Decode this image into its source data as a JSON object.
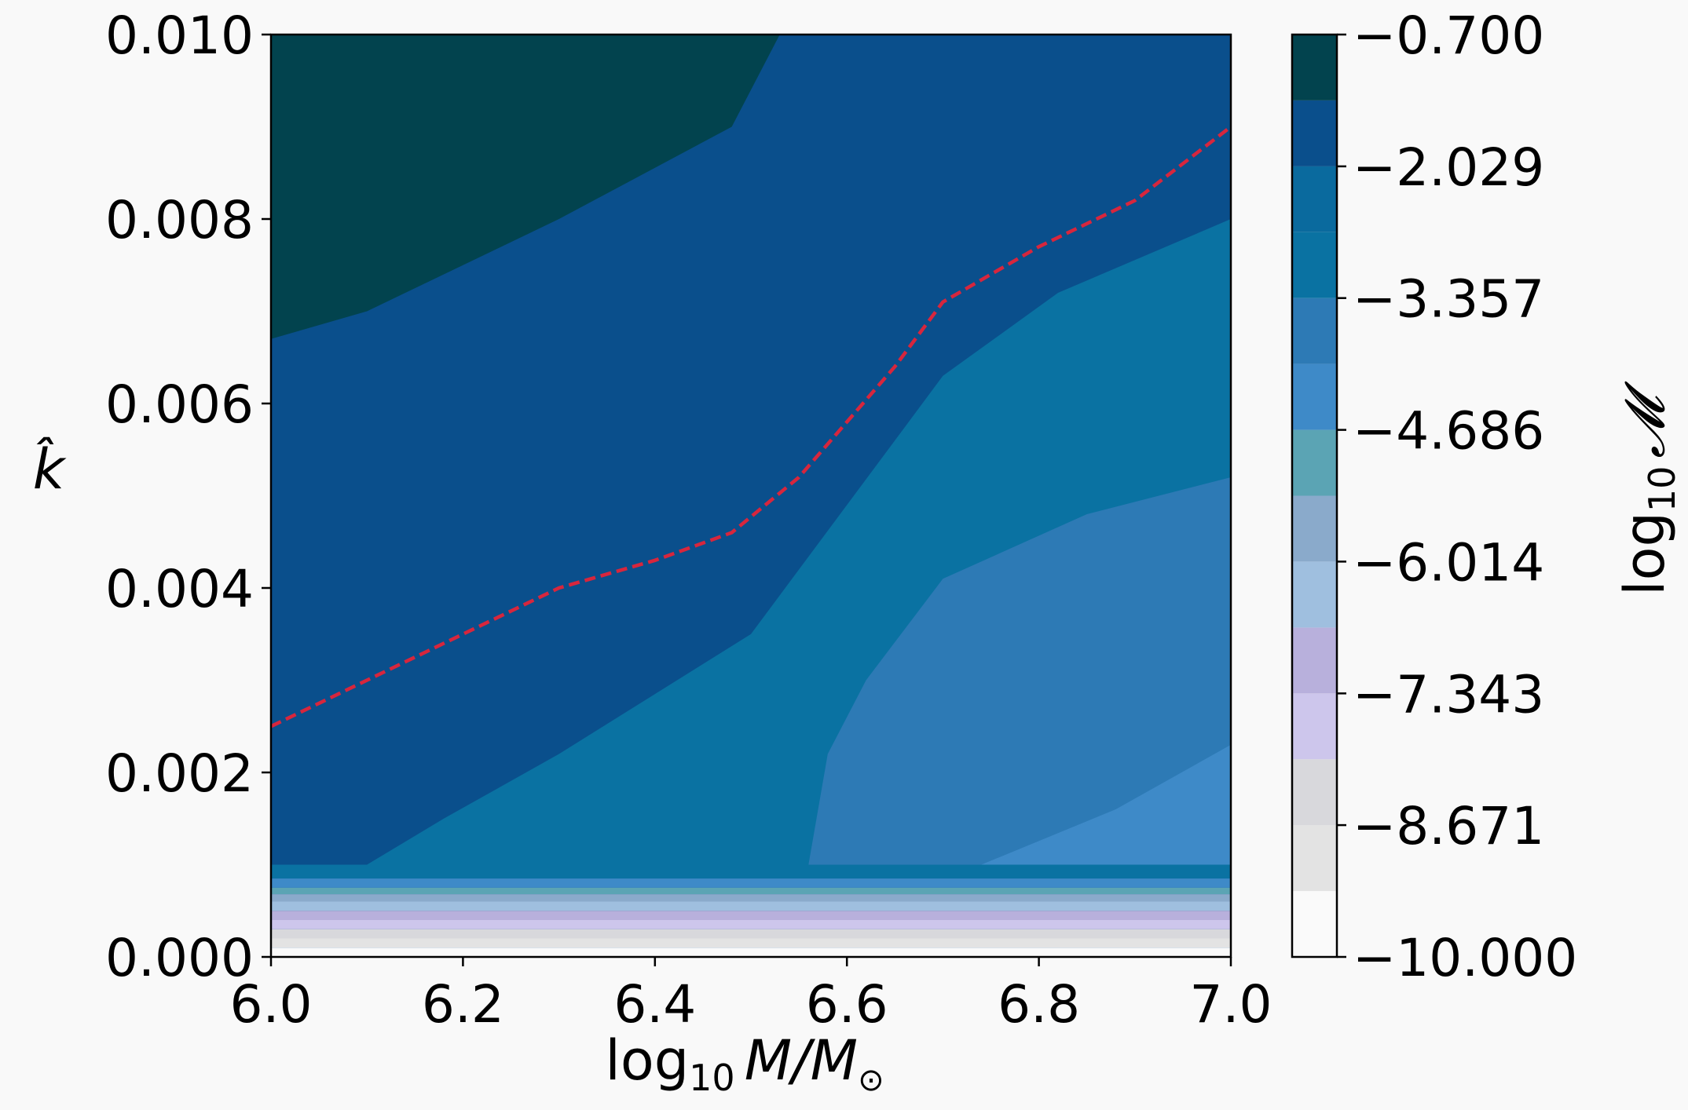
{
  "chart_data": {
    "type": "heatmap",
    "subtype": "filled-contour",
    "xlabel": {
      "text": "log",
      "sub": "10",
      "rest": "M/M",
      "sun": "⊙"
    },
    "ylabel": "k̂",
    "xlim": [
      6.0,
      7.0
    ],
    "ylim": [
      0.0,
      0.01
    ],
    "xticks": [
      "6.0",
      "6.2",
      "6.4",
      "6.6",
      "6.8",
      "7.0"
    ],
    "yticks": [
      "0.000",
      "0.002",
      "0.004",
      "0.006",
      "0.008",
      "0.010"
    ],
    "colorbar": {
      "label": {
        "text": "log",
        "sub": "10",
        "rest": "𝓜"
      },
      "range": [
        -10.0,
        -0.7
      ],
      "ticks": [
        "−10.000",
        "−8.671",
        "−7.343",
        "−6.014",
        "−4.686",
        "−3.357",
        "−2.029",
        "−0.700"
      ],
      "levels": [
        {
          "from": -10.0,
          "to": -9.336,
          "color": "#fafafa"
        },
        {
          "from": -9.336,
          "to": -8.671,
          "color": "#e3e3e3"
        },
        {
          "from": -8.671,
          "to": -8.007,
          "color": "#d8d8dc"
        },
        {
          "from": -8.007,
          "to": -7.343,
          "color": "#cdc6ec"
        },
        {
          "from": -7.343,
          "to": -6.679,
          "color": "#b8b0dc"
        },
        {
          "from": -6.679,
          "to": -6.014,
          "color": "#9fbfdf"
        },
        {
          "from": -6.014,
          "to": -5.35,
          "color": "#8aaacb"
        },
        {
          "from": -5.35,
          "to": -4.686,
          "color": "#5ba4b4"
        },
        {
          "from": -4.686,
          "to": -4.021,
          "color": "#3e8ac8"
        },
        {
          "from": -4.021,
          "to": -3.357,
          "color": "#2d7ab5"
        },
        {
          "from": -3.357,
          "to": -2.693,
          "color": "#0a72a2"
        },
        {
          "from": -2.693,
          "to": -2.029,
          "color": "#0a6a9e"
        },
        {
          "from": -2.029,
          "to": -1.364,
          "color": "#0a4f8c"
        },
        {
          "from": -1.364,
          "to": -0.7,
          "color": "#02434e"
        }
      ]
    },
    "regions": [
      {
        "level": -1.0,
        "color": "#02434e",
        "boundary": [
          [
            6.0,
            0.0067
          ],
          [
            6.1,
            0.007
          ],
          [
            6.3,
            0.008
          ],
          [
            6.48,
            0.009
          ],
          [
            6.53,
            0.01
          ],
          [
            6.0,
            0.01
          ]
        ]
      },
      {
        "level": -3.0,
        "color": "#0a72a2",
        "boundary": [
          [
            6.1,
            0.001
          ],
          [
            6.18,
            0.0015
          ],
          [
            6.3,
            0.0022
          ],
          [
            6.5,
            0.0035
          ],
          [
            6.7,
            0.0063
          ],
          [
            6.82,
            0.0072
          ],
          [
            7.0,
            0.008
          ],
          [
            7.0,
            0.001
          ]
        ]
      },
      {
        "level": -4.0,
        "color": "#2d7ab5",
        "boundary": [
          [
            6.56,
            0.001
          ],
          [
            6.58,
            0.0022
          ],
          [
            6.62,
            0.003
          ],
          [
            6.7,
            0.0041
          ],
          [
            6.85,
            0.0048
          ],
          [
            7.0,
            0.0052
          ],
          [
            7.0,
            0.001
          ]
        ]
      },
      {
        "level": -4.5,
        "color": "#3e8ac8",
        "boundary": [
          [
            6.74,
            0.001
          ],
          [
            6.88,
            0.0016
          ],
          [
            7.0,
            0.0023
          ],
          [
            7.0,
            0.001
          ]
        ]
      }
    ],
    "bottom_bands": [
      {
        "from": 0.00085,
        "to": 0.001,
        "color": "#0a72a2"
      },
      {
        "from": 0.00075,
        "to": 0.00085,
        "color": "#3e8ac8"
      },
      {
        "from": 0.00068,
        "to": 0.00075,
        "color": "#5ba4b4"
      },
      {
        "from": 0.0006,
        "to": 0.00068,
        "color": "#8aaacb"
      },
      {
        "from": 0.0005,
        "to": 0.0006,
        "color": "#9fbfdf"
      },
      {
        "from": 0.0004,
        "to": 0.0005,
        "color": "#b8b0dc"
      },
      {
        "from": 0.0003,
        "to": 0.0004,
        "color": "#cdc6ec"
      },
      {
        "from": 0.0002,
        "to": 0.0003,
        "color": "#d8d8dc"
      },
      {
        "from": 0.0001,
        "to": 0.0002,
        "color": "#e3e3e3"
      },
      {
        "from": 0.0,
        "to": 0.0001,
        "color": "#fafafa"
      }
    ],
    "background_region": {
      "level": -2.0,
      "color": "#0a4f8c"
    },
    "series": [
      {
        "style": "dashed",
        "color": "#d7263d",
        "x": [
          6.0,
          6.1,
          6.2,
          6.3,
          6.4,
          6.48,
          6.55,
          6.6,
          6.65,
          6.7,
          6.8,
          6.9,
          7.0
        ],
        "y": [
          0.0025,
          0.003,
          0.0035,
          0.004,
          0.0043,
          0.0046,
          0.0052,
          0.0058,
          0.0064,
          0.0071,
          0.0077,
          0.0082,
          0.009
        ]
      }
    ],
    "grid": false,
    "legend": "none"
  }
}
